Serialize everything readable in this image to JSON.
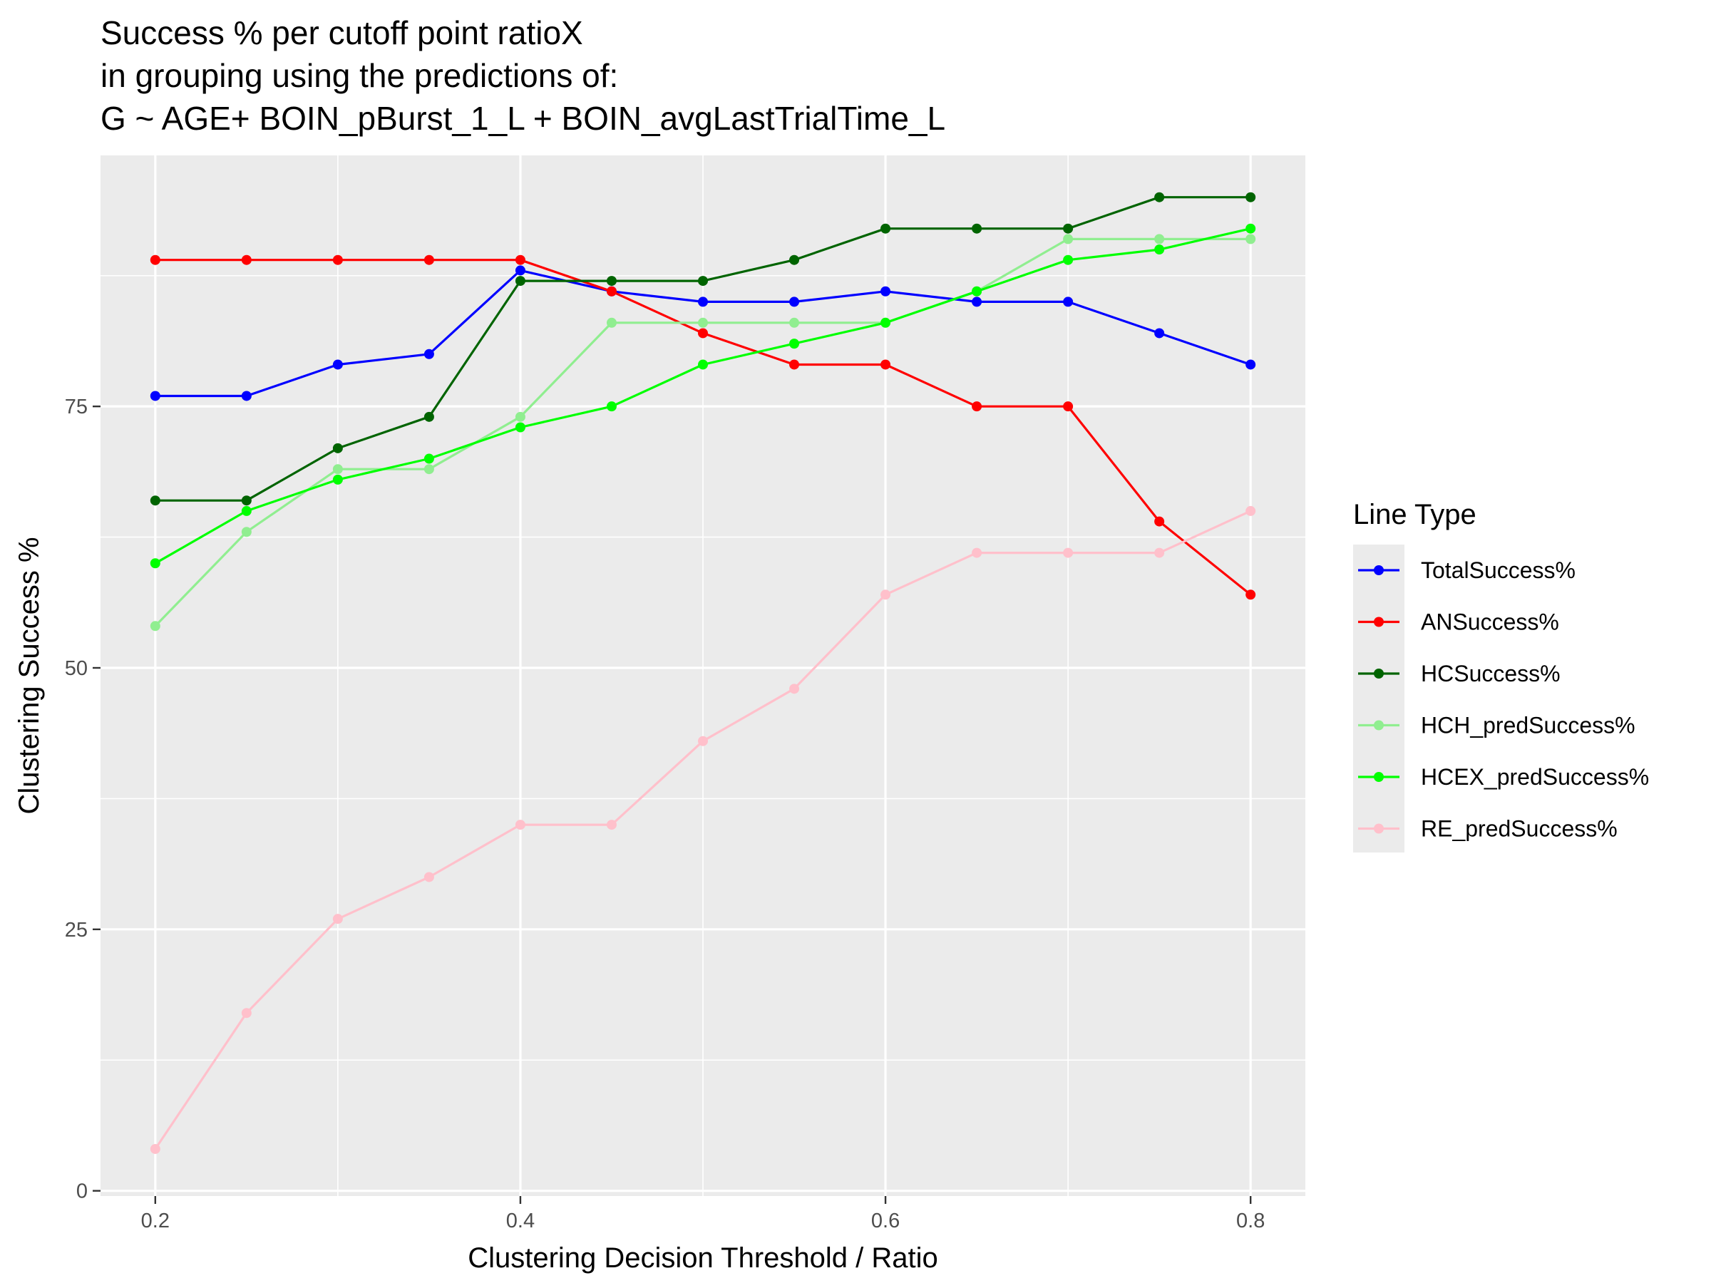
{
  "chart_data": {
    "type": "line",
    "title_lines": [
      "Success % per cutoff point ratioX",
      "in grouping using the predictions of:",
      "G ~ AGE+ BOIN_pBurst_1_L + BOIN_avgLastTrialTime_L"
    ],
    "xlabel": "Clustering Decision Threshold / Ratio",
    "ylabel": "Clustering Success %",
    "x": [
      0.2,
      0.25,
      0.3,
      0.35,
      0.4,
      0.45,
      0.5,
      0.55,
      0.6,
      0.65,
      0.7,
      0.75,
      0.8
    ],
    "xlim": [
      0.17,
      0.83
    ],
    "ylim": [
      -0.5,
      99
    ],
    "x_ticks": [
      0.2,
      0.4,
      0.6,
      0.8
    ],
    "x_tick_labels": [
      "0.2",
      "0.4",
      "0.6",
      "0.8"
    ],
    "y_ticks": [
      0,
      25,
      50,
      75
    ],
    "y_tick_labels": [
      "0",
      "25",
      "50",
      "75"
    ],
    "grid": true,
    "legend": {
      "title": "Line Type",
      "placement": "right"
    },
    "series": [
      {
        "name": "TotalSuccess%",
        "color": "#0000ff",
        "values": [
          76,
          76,
          79,
          80,
          88,
          86,
          85,
          85,
          86,
          85,
          85,
          82,
          79
        ]
      },
      {
        "name": "ANSuccess%",
        "color": "#ff0000",
        "values": [
          89,
          89,
          89,
          89,
          89,
          86,
          82,
          79,
          79,
          75,
          75,
          64,
          57
        ]
      },
      {
        "name": "HCSuccess%",
        "color": "#006400",
        "values": [
          66,
          66,
          71,
          74,
          87,
          87,
          87,
          89,
          92,
          92,
          92,
          95,
          95
        ]
      },
      {
        "name": "HCH_predSuccess%",
        "color": "#90ee90",
        "values": [
          54,
          63,
          69,
          69,
          74,
          83,
          83,
          83,
          83,
          86,
          91,
          91,
          91
        ]
      },
      {
        "name": "HCEX_predSuccess%",
        "color": "#00ff00",
        "values": [
          60,
          65,
          68,
          70,
          73,
          75,
          79,
          81,
          83,
          86,
          89,
          90,
          92
        ]
      },
      {
        "name": "RE_predSuccess%",
        "color": "#ffc0cb",
        "values": [
          4,
          17,
          26,
          30,
          35,
          35,
          43,
          48,
          57,
          61,
          61,
          61,
          65
        ]
      }
    ]
  }
}
